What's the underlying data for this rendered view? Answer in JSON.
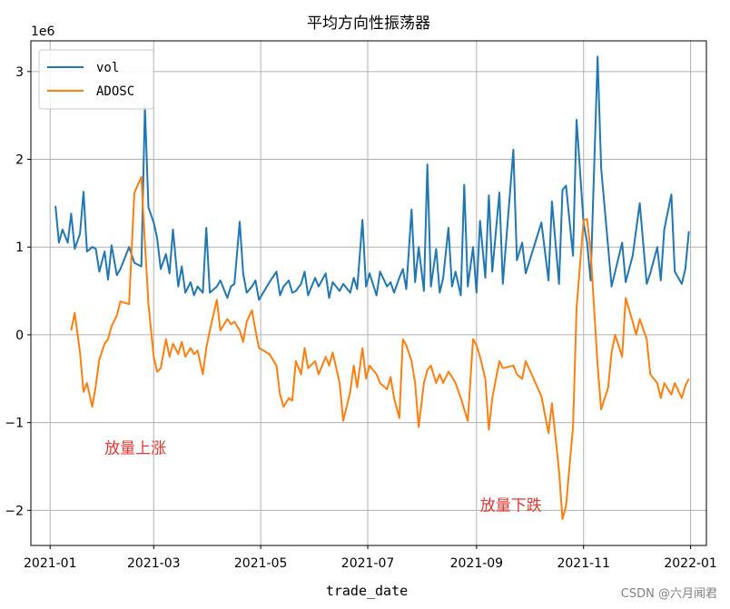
{
  "chart_data": {
    "type": "line",
    "title": "平均方向性振荡器",
    "xlabel": "trade_date",
    "ylabel": "",
    "y_offset_label": "1e6",
    "ylim": [
      -2.4,
      3.35
    ],
    "xlim": [
      "2020-12-21",
      "2022-01-10"
    ],
    "yticks": [
      -2,
      -1,
      0,
      1,
      2,
      3
    ],
    "ytick_labels": [
      "−2",
      "−1",
      "0",
      "1",
      "2",
      "3"
    ],
    "xticks": [
      "2021-01-01",
      "2021-03-01",
      "2021-05-01",
      "2021-07-01",
      "2021-09-01",
      "2021-11-01",
      "2022-01-01"
    ],
    "xtick_labels": [
      "2021-01",
      "2021-03",
      "2021-05",
      "2021-07",
      "2021-09",
      "2021-11",
      "2022-01"
    ],
    "grid": true,
    "legend_position": "top-left",
    "series": [
      {
        "name": "vol",
        "color": "#1f77b4",
        "x": [
          "2021-01-04",
          "2021-01-06",
          "2021-01-08",
          "2021-01-11",
          "2021-01-13",
          "2021-01-15",
          "2021-01-18",
          "2021-01-20",
          "2021-01-22",
          "2021-01-25",
          "2021-01-27",
          "2021-01-29",
          "2021-02-01",
          "2021-02-03",
          "2021-02-05",
          "2021-02-08",
          "2021-02-10",
          "2021-02-15",
          "2021-02-18",
          "2021-02-22",
          "2021-02-24",
          "2021-02-26",
          "2021-03-01",
          "2021-03-03",
          "2021-03-05",
          "2021-03-08",
          "2021-03-10",
          "2021-03-12",
          "2021-03-15",
          "2021-03-17",
          "2021-03-19",
          "2021-03-22",
          "2021-03-24",
          "2021-03-26",
          "2021-03-29",
          "2021-03-31",
          "2021-04-02",
          "2021-04-06",
          "2021-04-08",
          "2021-04-12",
          "2021-04-14",
          "2021-04-16",
          "2021-04-19",
          "2021-04-21",
          "2021-04-23",
          "2021-04-26",
          "2021-04-28",
          "2021-04-30",
          "2021-05-06",
          "2021-05-10",
          "2021-05-12",
          "2021-05-14",
          "2021-05-17",
          "2021-05-19",
          "2021-05-21",
          "2021-05-24",
          "2021-05-26",
          "2021-05-28",
          "2021-06-01",
          "2021-06-03",
          "2021-06-07",
          "2021-06-09",
          "2021-06-11",
          "2021-06-15",
          "2021-06-17",
          "2021-06-21",
          "2021-06-23",
          "2021-06-25",
          "2021-06-28",
          "2021-06-30",
          "2021-07-02",
          "2021-07-06",
          "2021-07-08",
          "2021-07-12",
          "2021-07-14",
          "2021-07-16",
          "2021-07-19",
          "2021-07-21",
          "2021-07-23",
          "2021-07-26",
          "2021-07-28",
          "2021-07-30",
          "2021-08-02",
          "2021-08-04",
          "2021-08-06",
          "2021-08-09",
          "2021-08-11",
          "2021-08-13",
          "2021-08-16",
          "2021-08-18",
          "2021-08-20",
          "2021-08-23",
          "2021-08-25",
          "2021-08-27",
          "2021-08-30",
          "2021-09-01",
          "2021-09-03",
          "2021-09-06",
          "2021-09-08",
          "2021-09-10",
          "2021-09-14",
          "2021-09-16",
          "2021-09-22",
          "2021-09-24",
          "2021-09-27",
          "2021-09-29",
          "2021-10-08",
          "2021-10-12",
          "2021-10-14",
          "2021-10-18",
          "2021-10-20",
          "2021-10-22",
          "2021-10-26",
          "2021-10-28",
          "2021-11-01",
          "2021-11-03",
          "2021-11-05",
          "2021-11-09",
          "2021-11-11",
          "2021-11-15",
          "2021-11-17",
          "2021-11-19",
          "2021-11-23",
          "2021-11-25",
          "2021-11-29",
          "2021-12-01",
          "2021-12-03",
          "2021-12-07",
          "2021-12-09",
          "2021-12-13",
          "2021-12-15",
          "2021-12-17",
          "2021-12-21",
          "2021-12-23",
          "2021-12-27",
          "2021-12-29",
          "2021-12-31"
        ],
        "values": [
          1.47,
          1.05,
          1.2,
          1.05,
          1.38,
          0.98,
          1.15,
          1.63,
          0.95,
          1.0,
          0.98,
          0.72,
          0.95,
          0.63,
          1.02,
          0.68,
          0.75,
          1.0,
          0.82,
          0.78,
          2.6,
          1.45,
          1.28,
          1.1,
          0.75,
          0.92,
          0.7,
          1.2,
          0.55,
          0.78,
          0.48,
          0.6,
          0.45,
          0.55,
          0.48,
          1.22,
          0.48,
          0.55,
          0.62,
          0.42,
          0.55,
          0.58,
          1.29,
          0.7,
          0.48,
          0.55,
          0.62,
          0.4,
          0.6,
          0.72,
          0.45,
          0.55,
          0.62,
          0.48,
          0.5,
          0.58,
          0.72,
          0.45,
          0.65,
          0.55,
          0.7,
          0.42,
          0.6,
          0.5,
          0.58,
          0.48,
          0.65,
          0.52,
          1.31,
          0.55,
          0.7,
          0.45,
          0.72,
          0.55,
          0.6,
          0.48,
          0.65,
          0.75,
          0.52,
          1.43,
          0.6,
          1.0,
          0.5,
          1.94,
          0.55,
          0.98,
          0.48,
          0.65,
          1.22,
          0.55,
          0.72,
          0.45,
          1.71,
          0.55,
          1.0,
          0.48,
          1.3,
          0.65,
          1.59,
          0.72,
          1.62,
          0.58,
          2.11,
          0.85,
          1.05,
          0.7,
          1.28,
          0.62,
          1.52,
          0.58,
          1.65,
          1.7,
          0.9,
          2.45,
          1.28,
          1.05,
          0.62,
          3.17,
          1.9,
          1.0,
          0.55,
          0.72,
          1.05,
          0.6,
          0.9,
          1.2,
          1.5,
          0.58,
          0.7,
          1.0,
          0.62,
          1.2,
          1.6,
          0.72,
          0.58,
          0.75,
          1.18
        ]
      },
      {
        "name": "ADOSC",
        "color": "#ff7f0e",
        "x": [
          "2021-01-13",
          "2021-01-15",
          "2021-01-18",
          "2021-01-20",
          "2021-01-22",
          "2021-01-25",
          "2021-01-27",
          "2021-01-29",
          "2021-02-01",
          "2021-02-03",
          "2021-02-05",
          "2021-02-08",
          "2021-02-10",
          "2021-02-15",
          "2021-02-18",
          "2021-02-22",
          "2021-02-24",
          "2021-02-26",
          "2021-03-01",
          "2021-03-03",
          "2021-03-05",
          "2021-03-08",
          "2021-03-10",
          "2021-03-12",
          "2021-03-15",
          "2021-03-17",
          "2021-03-19",
          "2021-03-22",
          "2021-03-24",
          "2021-03-26",
          "2021-03-29",
          "2021-03-31",
          "2021-04-02",
          "2021-04-06",
          "2021-04-08",
          "2021-04-12",
          "2021-04-14",
          "2021-04-16",
          "2021-04-19",
          "2021-04-21",
          "2021-04-23",
          "2021-04-26",
          "2021-04-28",
          "2021-04-30",
          "2021-05-06",
          "2021-05-10",
          "2021-05-12",
          "2021-05-14",
          "2021-05-17",
          "2021-05-19",
          "2021-05-21",
          "2021-05-24",
          "2021-05-26",
          "2021-05-28",
          "2021-06-01",
          "2021-06-03",
          "2021-06-07",
          "2021-06-09",
          "2021-06-11",
          "2021-06-15",
          "2021-06-17",
          "2021-06-21",
          "2021-06-23",
          "2021-06-25",
          "2021-06-28",
          "2021-06-30",
          "2021-07-02",
          "2021-07-06",
          "2021-07-08",
          "2021-07-12",
          "2021-07-14",
          "2021-07-16",
          "2021-07-19",
          "2021-07-21",
          "2021-07-23",
          "2021-07-26",
          "2021-07-28",
          "2021-07-30",
          "2021-08-02",
          "2021-08-04",
          "2021-08-06",
          "2021-08-09",
          "2021-08-11",
          "2021-08-13",
          "2021-08-16",
          "2021-08-18",
          "2021-08-20",
          "2021-08-23",
          "2021-08-25",
          "2021-08-27",
          "2021-08-30",
          "2021-09-01",
          "2021-09-03",
          "2021-09-06",
          "2021-09-08",
          "2021-09-10",
          "2021-09-14",
          "2021-09-16",
          "2021-09-22",
          "2021-09-24",
          "2021-09-27",
          "2021-09-29",
          "2021-10-08",
          "2021-10-12",
          "2021-10-14",
          "2021-10-18",
          "2021-10-20",
          "2021-10-22",
          "2021-10-26",
          "2021-10-28",
          "2021-11-01",
          "2021-11-03",
          "2021-11-05",
          "2021-11-09",
          "2021-11-11",
          "2021-11-15",
          "2021-11-17",
          "2021-11-19",
          "2021-11-23",
          "2021-11-25",
          "2021-11-29",
          "2021-12-01",
          "2021-12-03",
          "2021-12-07",
          "2021-12-09",
          "2021-12-13",
          "2021-12-15",
          "2021-12-17",
          "2021-12-21",
          "2021-12-23",
          "2021-12-27",
          "2021-12-29",
          "2021-12-31"
        ],
        "values": [
          0.05,
          0.25,
          -0.2,
          -0.65,
          -0.55,
          -0.82,
          -0.58,
          -0.28,
          -0.1,
          -0.05,
          0.1,
          0.22,
          0.38,
          0.35,
          1.62,
          1.8,
          1.05,
          0.35,
          -0.25,
          -0.42,
          -0.38,
          -0.05,
          -0.25,
          -0.1,
          -0.22,
          -0.08,
          -0.25,
          -0.15,
          -0.22,
          -0.18,
          -0.45,
          -0.15,
          0.05,
          0.4,
          0.05,
          0.18,
          0.12,
          0.15,
          0.05,
          -0.08,
          0.15,
          0.28,
          0.05,
          -0.15,
          -0.22,
          -0.35,
          -0.68,
          -0.82,
          -0.72,
          -0.75,
          -0.3,
          -0.45,
          -0.15,
          -0.38,
          -0.3,
          -0.45,
          -0.25,
          -0.35,
          -0.2,
          -0.55,
          -0.98,
          -0.65,
          -0.35,
          -0.6,
          -0.15,
          -0.5,
          -0.35,
          -0.45,
          -0.55,
          -0.62,
          -0.48,
          -0.72,
          -0.95,
          -0.05,
          -0.12,
          -0.3,
          -0.55,
          -1.05,
          -0.55,
          -0.4,
          -0.35,
          -0.55,
          -0.45,
          -0.55,
          -0.42,
          -0.48,
          -0.55,
          -0.72,
          -0.85,
          -0.98,
          -0.05,
          -0.12,
          -0.25,
          -0.5,
          -1.08,
          -0.72,
          -0.3,
          -0.38,
          -0.35,
          -0.45,
          -0.5,
          -0.3,
          -0.7,
          -1.12,
          -0.78,
          -1.55,
          -2.1,
          -1.95,
          -1.05,
          0.3,
          1.3,
          1.32,
          0.95,
          -0.35,
          -0.85,
          -0.6,
          -0.2,
          0.0,
          -0.25,
          0.42,
          0.15,
          0.0,
          0.18,
          -0.05,
          -0.45,
          -0.55,
          -0.72,
          -0.55,
          -0.68,
          -0.55,
          -0.72,
          -0.58,
          -0.5
        ]
      }
    ],
    "annotations": [
      {
        "text": "放量上涨",
        "x": "2021-02-01",
        "y": -1.35
      },
      {
        "text": "放量下跌",
        "x": "2021-09-03",
        "y": -2.0
      }
    ]
  },
  "watermark": "CSDN @六月闻君"
}
